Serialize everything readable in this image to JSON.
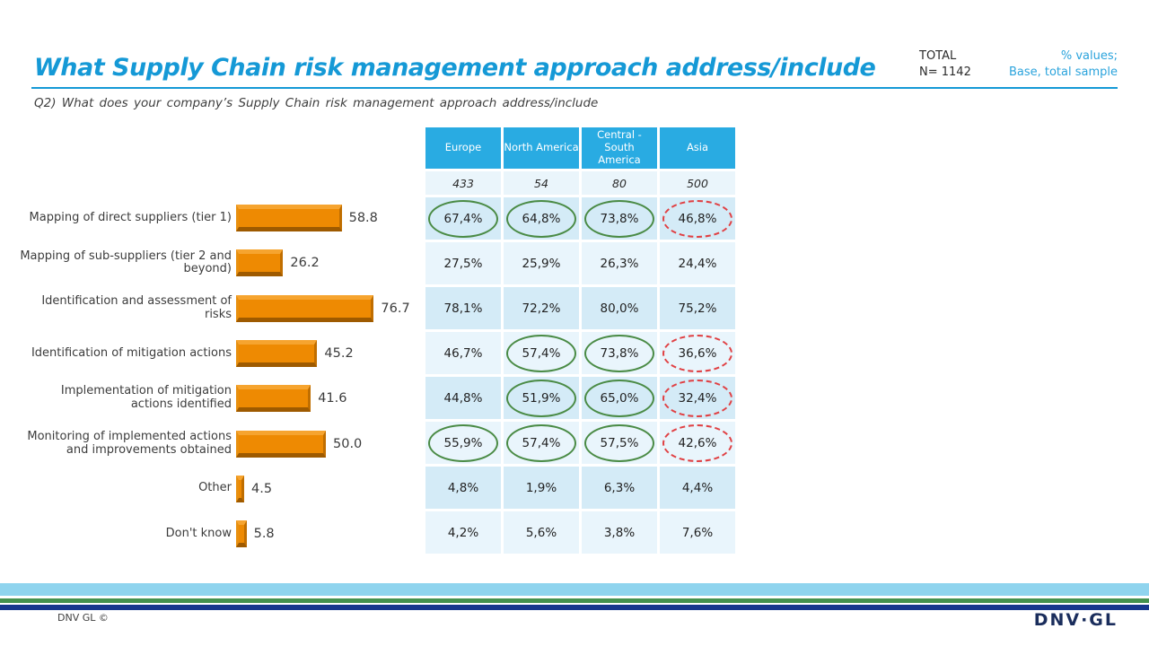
{
  "header": {
    "title": "What Supply Chain risk management approach address/include",
    "total_label": "TOTAL",
    "total_n": "N= 1142",
    "note_line1": "% values;",
    "note_line2": "Base, total sample",
    "question": "Q2) What does your company’s Supply Chain risk management approach address/include"
  },
  "colors": {
    "accent_cyan": "#1599D6",
    "table_header_blue": "#29ABE2",
    "row_dark": "#D4EBF7",
    "row_light": "#E9F5FC",
    "bar_orange": "#EE8A02",
    "circle_green": "#4A8B45",
    "circle_red": "#E04043",
    "stripe_lightblue": "#8FD4EE",
    "stripe_green": "#44914E",
    "stripe_navy": "#17378D",
    "logo_navy": "#1A2D5C"
  },
  "chart_data": {
    "type": "bar",
    "orientation": "horizontal",
    "title": "",
    "xlabel": "",
    "ylabel": "",
    "xlim": [
      0,
      100
    ],
    "grid": false,
    "legend": false,
    "categories": [
      "Mapping of direct suppliers (tier 1)",
      "Mapping of sub-suppliers (tier 2 and beyond)",
      "Identification and assessment of risks",
      "Identification of mitigation actions",
      "Implementation of mitigation actions identified",
      "Monitoring of implemented actions and improvements obtained",
      "Other",
      "Don't know"
    ],
    "values": [
      "58.8",
      "26.2",
      "76.7",
      "45.2",
      "41.6",
      "50.0",
      "4.5",
      "5.8"
    ],
    "series": [
      {
        "name": "Europe",
        "base": "433",
        "values": [
          "67,4%",
          "27,5%",
          "78,1%",
          "46,7%",
          "44,8%",
          "55,9%",
          "4,8%",
          "4,2%"
        ]
      },
      {
        "name": "North America",
        "base": "54",
        "values": [
          "64,8%",
          "25,9%",
          "72,2%",
          "57,4%",
          "51,9%",
          "57,4%",
          "1,9%",
          "5,6%"
        ]
      },
      {
        "name": "Central - South America",
        "base": "80",
        "values": [
          "73,8%",
          "26,3%",
          "80,0%",
          "73,8%",
          "65,0%",
          "57,5%",
          "6,3%",
          "3,8%"
        ]
      },
      {
        "name": "Asia",
        "base": "500",
        "values": [
          "46,8%",
          "24,4%",
          "75,2%",
          "36,6%",
          "32,4%",
          "42,6%",
          "4,4%",
          "7,6%"
        ]
      }
    ]
  },
  "table": {
    "columns": [
      "Europe",
      "North America",
      "Central - South America",
      "Asia"
    ],
    "bases": [
      "433",
      "54",
      "80",
      "500"
    ],
    "rows": [
      {
        "cells": [
          {
            "v": "67,4%",
            "c": "green"
          },
          {
            "v": "64,8%",
            "c": "green"
          },
          {
            "v": "73,8%",
            "c": "green"
          },
          {
            "v": "46,8%",
            "c": "red"
          }
        ]
      },
      {
        "cells": [
          {
            "v": "27,5%",
            "c": null
          },
          {
            "v": "25,9%",
            "c": null
          },
          {
            "v": "26,3%",
            "c": null
          },
          {
            "v": "24,4%",
            "c": null
          }
        ]
      },
      {
        "cells": [
          {
            "v": "78,1%",
            "c": null
          },
          {
            "v": "72,2%",
            "c": null
          },
          {
            "v": "80,0%",
            "c": null
          },
          {
            "v": "75,2%",
            "c": null
          }
        ]
      },
      {
        "cells": [
          {
            "v": "46,7%",
            "c": null
          },
          {
            "v": "57,4%",
            "c": "green"
          },
          {
            "v": "73,8%",
            "c": "green"
          },
          {
            "v": "36,6%",
            "c": "red"
          }
        ]
      },
      {
        "cells": [
          {
            "v": "44,8%",
            "c": null
          },
          {
            "v": "51,9%",
            "c": "green"
          },
          {
            "v": "65,0%",
            "c": "green"
          },
          {
            "v": "32,4%",
            "c": "red"
          }
        ]
      },
      {
        "cells": [
          {
            "v": "55,9%",
            "c": "green"
          },
          {
            "v": "57,4%",
            "c": "green"
          },
          {
            "v": "57,5%",
            "c": "green"
          },
          {
            "v": "42,6%",
            "c": "red"
          }
        ]
      },
      {
        "cells": [
          {
            "v": "4,8%",
            "c": null
          },
          {
            "v": "1,9%",
            "c": null
          },
          {
            "v": "6,3%",
            "c": null
          },
          {
            "v": "4,4%",
            "c": null
          }
        ]
      },
      {
        "cells": [
          {
            "v": "4,2%",
            "c": null
          },
          {
            "v": "5,6%",
            "c": null
          },
          {
            "v": "3,8%",
            "c": null
          },
          {
            "v": "7,6%",
            "c": null
          }
        ]
      }
    ]
  },
  "footer": {
    "copyright": "DNV GL ©",
    "logo": "DNV·GL"
  }
}
